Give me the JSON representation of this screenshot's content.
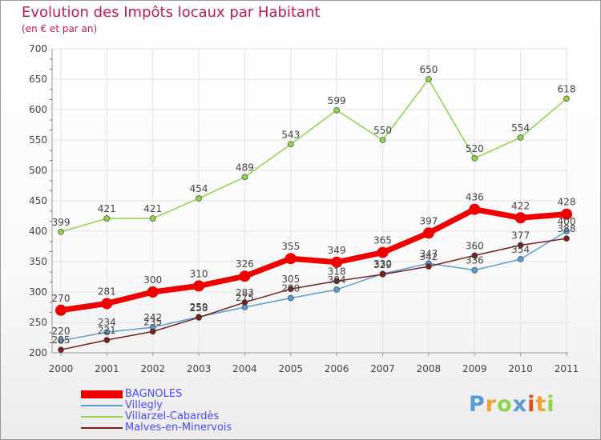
{
  "chart_data": {
    "type": "line",
    "title": "Evolution des Impôts locaux par Habitant",
    "subtitle": "(en € et par an)",
    "categories": [
      "2000",
      "2001",
      "2002",
      "2003",
      "2004",
      "2005",
      "2006",
      "2007",
      "2008",
      "2009",
      "2010",
      "2011"
    ],
    "ylim": [
      200,
      700
    ],
    "yticks": [
      "200",
      "250",
      "300",
      "350",
      "400",
      "450",
      "500",
      "550",
      "600",
      "650",
      "700"
    ],
    "grid": true,
    "legend_position": "bottom-left",
    "series": [
      {
        "name": "Villegly",
        "color": "#5b9bd5",
        "values": [
          220,
          234,
          242,
          259,
          275,
          290,
          304,
          330,
          347,
          336,
          354,
          400
        ]
      },
      {
        "name": "Villarzel-Cabardès",
        "color": "#8ed44a",
        "values": [
          399,
          421,
          421,
          454,
          489,
          543,
          599,
          550,
          650,
          520,
          554,
          618
        ]
      },
      {
        "name": "Malves-en-Minervois",
        "color": "#7a1f1f",
        "values": [
          205,
          221,
          235,
          258,
          283,
          305,
          318,
          329,
          342,
          360,
          377,
          388
        ]
      },
      {
        "name": "BAGNOLES",
        "color": "#ee0000",
        "values": [
          270,
          281,
          300,
          310,
          326,
          355,
          349,
          365,
          397,
          436,
          422,
          428
        ]
      }
    ],
    "legend_order": [
      "BAGNOLES",
      "Villegly",
      "Villarzel-Cabardès",
      "Malves-en-Minervois"
    ]
  },
  "logo": {
    "text": "Proxiti",
    "colors": [
      "#5b9bd5",
      "#f0a030",
      "#8ed44a",
      "#5b9bd5",
      "#e05020",
      "#f0a030",
      "#8ed44a"
    ]
  }
}
